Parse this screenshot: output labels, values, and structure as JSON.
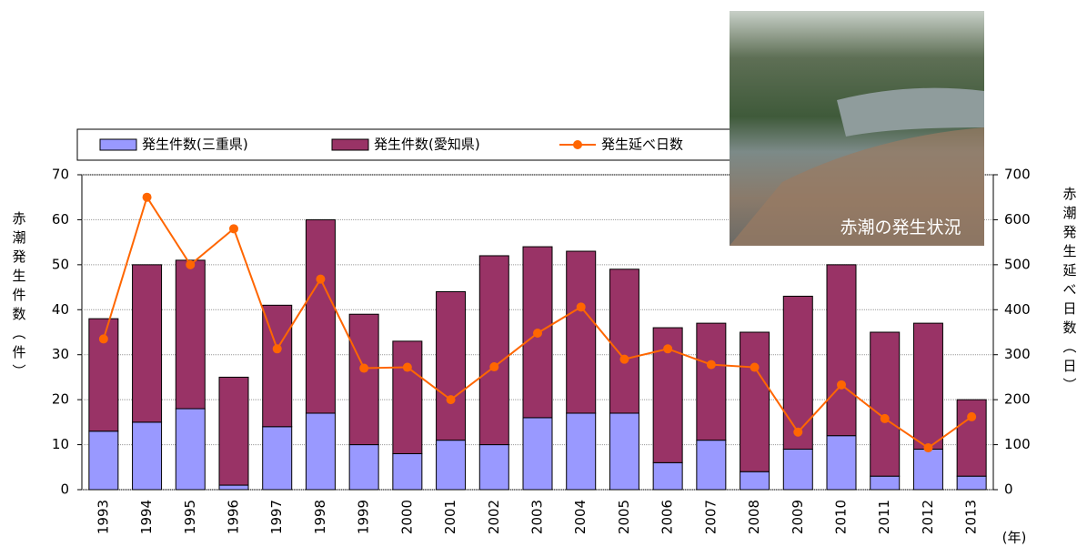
{
  "chart_data": {
    "type": "bar",
    "y_label": "赤潮発生件数（件）",
    "y2_label": "赤潮発生延べ日数（日）",
    "x_label": "(年)",
    "annotation": "赤潮の発生状況",
    "categories": [
      "1993",
      "1994",
      "1995",
      "1996",
      "1997",
      "1998",
      "1999",
      "2000",
      "2001",
      "2002",
      "2003",
      "2004",
      "2005",
      "2006",
      "2007",
      "2008",
      "2009",
      "2010",
      "2011",
      "2012",
      "2013"
    ],
    "series": [
      {
        "name": "発生件数(三重県)",
        "type": "bar",
        "color": "#9999ff",
        "values": [
          13,
          15,
          18,
          1,
          14,
          17,
          10,
          8,
          11,
          10,
          16,
          17,
          17,
          6,
          11,
          4,
          9,
          12,
          3,
          9,
          3
        ]
      },
      {
        "name": "発生件数(愛知県)",
        "type": "bar",
        "color": "#993366",
        "values": [
          25,
          35,
          33,
          24,
          27,
          43,
          29,
          25,
          33,
          42,
          38,
          36,
          32,
          30,
          26,
          31,
          34,
          38,
          32,
          28,
          17
        ]
      },
      {
        "name": "発生延べ日数",
        "type": "line",
        "axis": "y2",
        "color": "#ff6600",
        "values": [
          335,
          650,
          500,
          580,
          313,
          468,
          270,
          272,
          200,
          273,
          348,
          406,
          290,
          313,
          278,
          272,
          128,
          233,
          158,
          93,
          162
        ]
      }
    ],
    "ylim": [
      0,
      70
    ],
    "yticks": [
      0,
      10,
      20,
      30,
      40,
      50,
      60,
      70
    ],
    "y2lim": [
      0,
      700
    ],
    "y2ticks": [
      0,
      100,
      200,
      300,
      400,
      500,
      600,
      700
    ],
    "grid": true,
    "legend": "top"
  }
}
